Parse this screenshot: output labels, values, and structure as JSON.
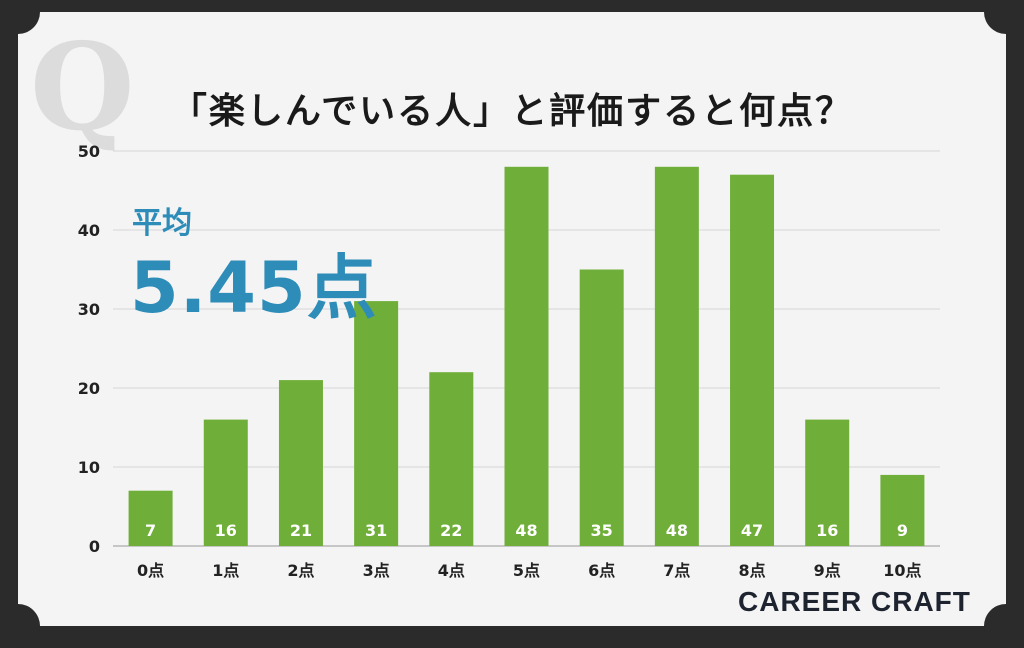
{
  "title": "「楽しんでいる人」と評価すると何点？",
  "deco_letter": "Q",
  "average": {
    "label": "平均",
    "value": "5.45点"
  },
  "brand": "CAREER CRAFT",
  "colors": {
    "bar": "#6fae38",
    "bar_label": "#ffffff",
    "accent": "#2e8cb8",
    "grid": "#d6d6d6",
    "axis_text": "#222222"
  },
  "chart_data": {
    "type": "bar",
    "categories": [
      "0点",
      "1点",
      "2点",
      "3点",
      "4点",
      "5点",
      "6点",
      "7点",
      "8点",
      "9点",
      "10点"
    ],
    "values": [
      7,
      16,
      21,
      31,
      22,
      48,
      35,
      48,
      47,
      16,
      9
    ],
    "title": "「楽しんでいる人」と評価すると何点？",
    "xlabel": "",
    "ylabel": "",
    "ylim": [
      0,
      50
    ],
    "yticks": [
      0,
      10,
      20,
      30,
      40,
      50
    ],
    "grid": true,
    "data_labels": true
  }
}
